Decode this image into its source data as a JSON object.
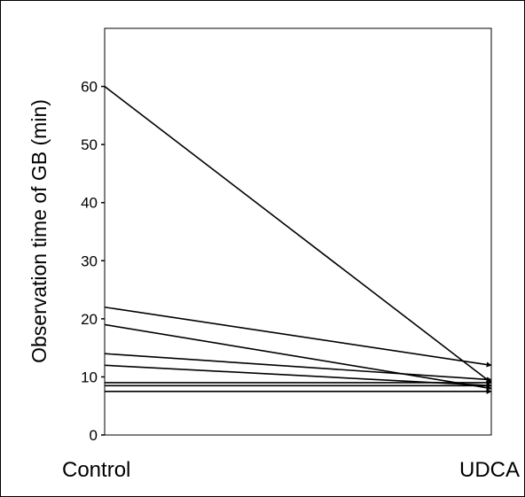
{
  "chart_data": {
    "type": "line",
    "ylabel": "Observation time of GB (min)",
    "categories": [
      "Control",
      "UDCA"
    ],
    "ylim": [
      0,
      70
    ],
    "yticks": [
      0,
      10,
      20,
      30,
      40,
      50,
      60
    ],
    "grid": false,
    "legend": "none",
    "series": [
      {
        "values": [
          60,
          9
        ]
      },
      {
        "values": [
          22,
          12
        ]
      },
      {
        "values": [
          19,
          8
        ]
      },
      {
        "values": [
          14,
          9.5
        ]
      },
      {
        "values": [
          12,
          8.5
        ]
      },
      {
        "values": [
          9,
          9
        ]
      },
      {
        "values": [
          8.5,
          8.5
        ]
      },
      {
        "values": [
          7.5,
          7.5
        ]
      }
    ]
  }
}
